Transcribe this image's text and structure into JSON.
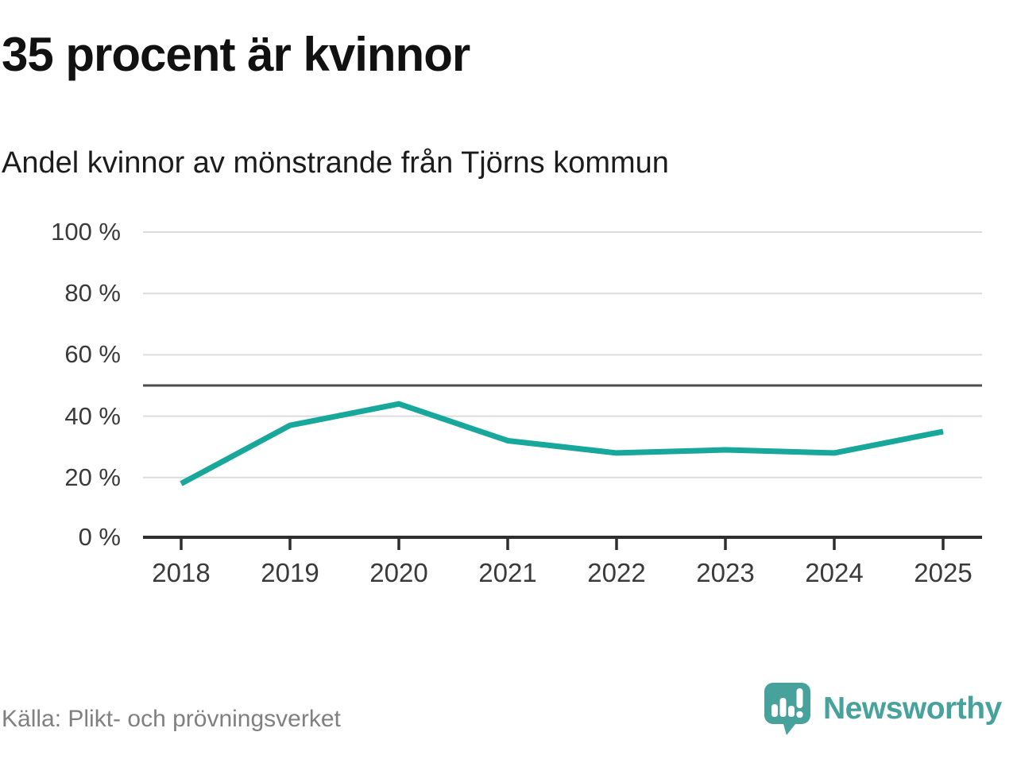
{
  "header": {
    "title": "35 procent är kvinnor",
    "subtitle": "Andel kvinnor av mönstrande från Tjörns kommun"
  },
  "chart_data": {
    "type": "line",
    "categories": [
      "2018",
      "2019",
      "2020",
      "2021",
      "2022",
      "2023",
      "2024",
      "2025"
    ],
    "series": [
      {
        "name": "Andel kvinnor av mönstrande",
        "values": [
          18,
          37,
          44,
          32,
          28,
          29,
          28,
          35
        ]
      }
    ],
    "unit": "%",
    "ylim": [
      0,
      100
    ],
    "yticks": [
      0,
      20,
      40,
      60,
      80,
      100
    ],
    "yticklabels": [
      "0 %",
      "20 %",
      "40 %",
      "60 %",
      "80 %",
      "100 %"
    ],
    "reference_line": {
      "value": 50,
      "color": "#4d4d4d"
    },
    "grid": true,
    "legend": "none",
    "line_color": "#17a79b",
    "gridline_color": "#dcdcdc",
    "axis_color": "#2e2e2e"
  },
  "source": {
    "text": "Källa: Plikt- och prövningsverket"
  },
  "logo": {
    "text": "Newsworthy",
    "color": "#46a29a",
    "icon": "newsworthy-speech-bubble-chart-icon"
  }
}
